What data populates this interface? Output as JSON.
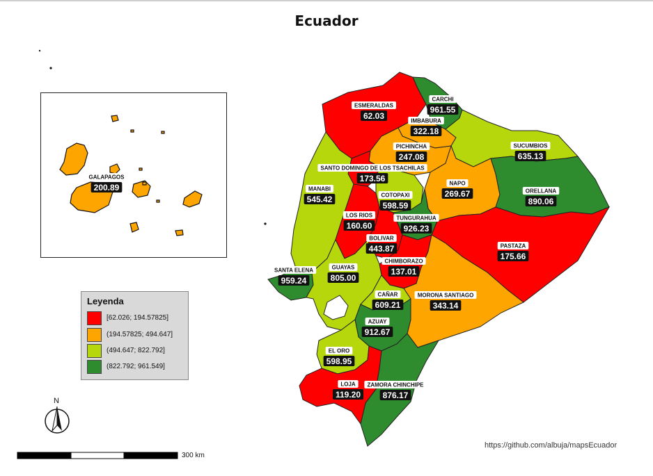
{
  "title": "Ecuador",
  "legend": {
    "title": "Leyenda",
    "classes": [
      {
        "label": "[62.026;  194.57825]",
        "color": "#ff0000"
      },
      {
        "label": "(194.57825;  494.647]",
        "color": "#ffa500"
      },
      {
        "label": "(494.647;  822.792]",
        "color": "#b5d70b"
      },
      {
        "label": "(822.792;  961.549]",
        "color": "#2e8b2e"
      }
    ]
  },
  "provinces": [
    {
      "name": "ESMERALDAS",
      "value": "62.03",
      "class": 0
    },
    {
      "name": "CARCHI",
      "value": "961.55",
      "class": 3
    },
    {
      "name": "IMBABURA",
      "value": "322.18",
      "class": 1
    },
    {
      "name": "PICHINCHA",
      "value": "247.08",
      "class": 1
    },
    {
      "name": "SUCUMBIOS",
      "value": "635.13",
      "class": 2
    },
    {
      "name": "SANTO DOMINGO DE LOS TSACHILAS",
      "value": "173.56",
      "class": 0
    },
    {
      "name": "NAPO",
      "value": "269.67",
      "class": 1
    },
    {
      "name": "ORELLANA",
      "value": "890.06",
      "class": 3
    },
    {
      "name": "MANABI",
      "value": "545.42",
      "class": 2
    },
    {
      "name": "COTOPAXI",
      "value": "598.59",
      "class": 2
    },
    {
      "name": "LOS RIOS",
      "value": "160.60",
      "class": 0
    },
    {
      "name": "TUNGURAHUA",
      "value": "926.23",
      "class": 3
    },
    {
      "name": "BOLIVAR",
      "value": "443.87",
      "class": 1
    },
    {
      "name": "PASTAZA",
      "value": "175.66",
      "class": 0
    },
    {
      "name": "CHIMBORAZO",
      "value": "137.01",
      "class": 0
    },
    {
      "name": "SANTA ELENA",
      "value": "959.24",
      "class": 3
    },
    {
      "name": "GUAYAS",
      "value": "805.00",
      "class": 2
    },
    {
      "name": "CAÑAR",
      "value": "609.21",
      "class": 2
    },
    {
      "name": "MORONA SANTIAGO",
      "value": "343.14",
      "class": 1
    },
    {
      "name": "AZUAY",
      "value": "912.67",
      "class": 3
    },
    {
      "name": "EL ORO",
      "value": "598.95",
      "class": 2
    },
    {
      "name": "LOJA",
      "value": "119.20",
      "class": 0
    },
    {
      "name": "ZAMORA CHINCHIPE",
      "value": "876.17",
      "class": 3
    },
    {
      "name": "GALAPAGOS",
      "value": "200.89",
      "class": 1
    }
  ],
  "scale_bar": {
    "label": "300 km"
  },
  "north_arrow": {
    "label": "N",
    "icon": "north-arrow-icon"
  },
  "credit": "https://github.com/albuja/mapsEcuador"
}
